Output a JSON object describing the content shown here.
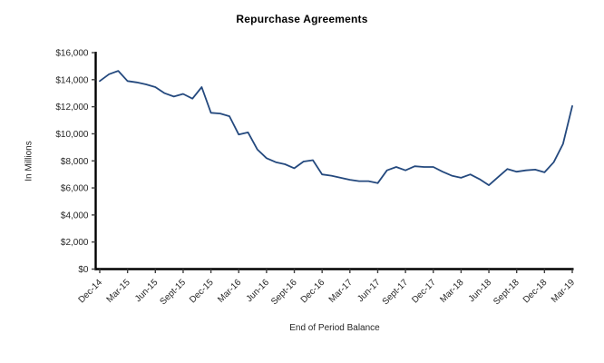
{
  "title": "Repurchase Agreements",
  "chart_data": {
    "type": "line",
    "title": "Repurchase Agreements",
    "xlabel": "End of Period Balance",
    "ylabel": "In Millions",
    "grid": false,
    "legend": false,
    "ylim": [
      0,
      16000
    ],
    "y_step": 2000,
    "y_tick_labels": [
      "$0",
      "$2,000",
      "$4,000",
      "$6,000",
      "$8,000",
      "$10,000",
      "$12,000",
      "$14,000",
      "$16,000"
    ],
    "x_tick_labels": [
      "Dec-14",
      "Mar-15",
      "Jun-15",
      "Sept-15",
      "Dec-15",
      "Mar-16",
      "Jun-16",
      "Sept-16",
      "Dec-16",
      "Mar-17",
      "Jun-17",
      "Sept-17",
      "Dec-17",
      "Mar-18",
      "Jun-18",
      "Sept-18",
      "Dec-18",
      "Mar-19"
    ],
    "x": [
      "Dec-14",
      "Jan-15",
      "Feb-15",
      "Mar-15",
      "Apr-15",
      "May-15",
      "Jun-15",
      "Jul-15",
      "Aug-15",
      "Sept-15",
      "Oct-15",
      "Nov-15",
      "Dec-15",
      "Jan-16",
      "Feb-16",
      "Mar-16",
      "Apr-16",
      "May-16",
      "Jun-16",
      "Jul-16",
      "Aug-16",
      "Sept-16",
      "Oct-16",
      "Nov-16",
      "Dec-16",
      "Jan-17",
      "Feb-17",
      "Mar-17",
      "Apr-17",
      "May-17",
      "Jun-17",
      "Jul-17",
      "Aug-17",
      "Sept-17",
      "Oct-17",
      "Nov-17",
      "Dec-17",
      "Jan-18",
      "Feb-18",
      "Mar-18",
      "Apr-18",
      "May-18",
      "Jun-18",
      "Jul-18",
      "Aug-18",
      "Sept-18",
      "Oct-18",
      "Nov-18",
      "Dec-18",
      "Jan-19",
      "Feb-19",
      "Mar-19"
    ],
    "values": [
      13900,
      14400,
      14650,
      13900,
      13800,
      13650,
      13450,
      13000,
      12750,
      12950,
      12600,
      13450,
      11550,
      11500,
      11300,
      9950,
      10100,
      8850,
      8200,
      7900,
      7750,
      7450,
      7950,
      8050,
      7000,
      6900,
      6750,
      6600,
      6500,
      6500,
      6350,
      7300,
      7550,
      7300,
      7600,
      7550,
      7550,
      7200,
      6900,
      6750,
      7000,
      6650,
      6200,
      6800,
      7400,
      7200,
      7300,
      7350,
      7150,
      7900,
      9250,
      12050
    ],
    "line_color": "#24497E",
    "axis_color": "#000000",
    "tick_color": "#404040",
    "label_color": "#262626"
  }
}
